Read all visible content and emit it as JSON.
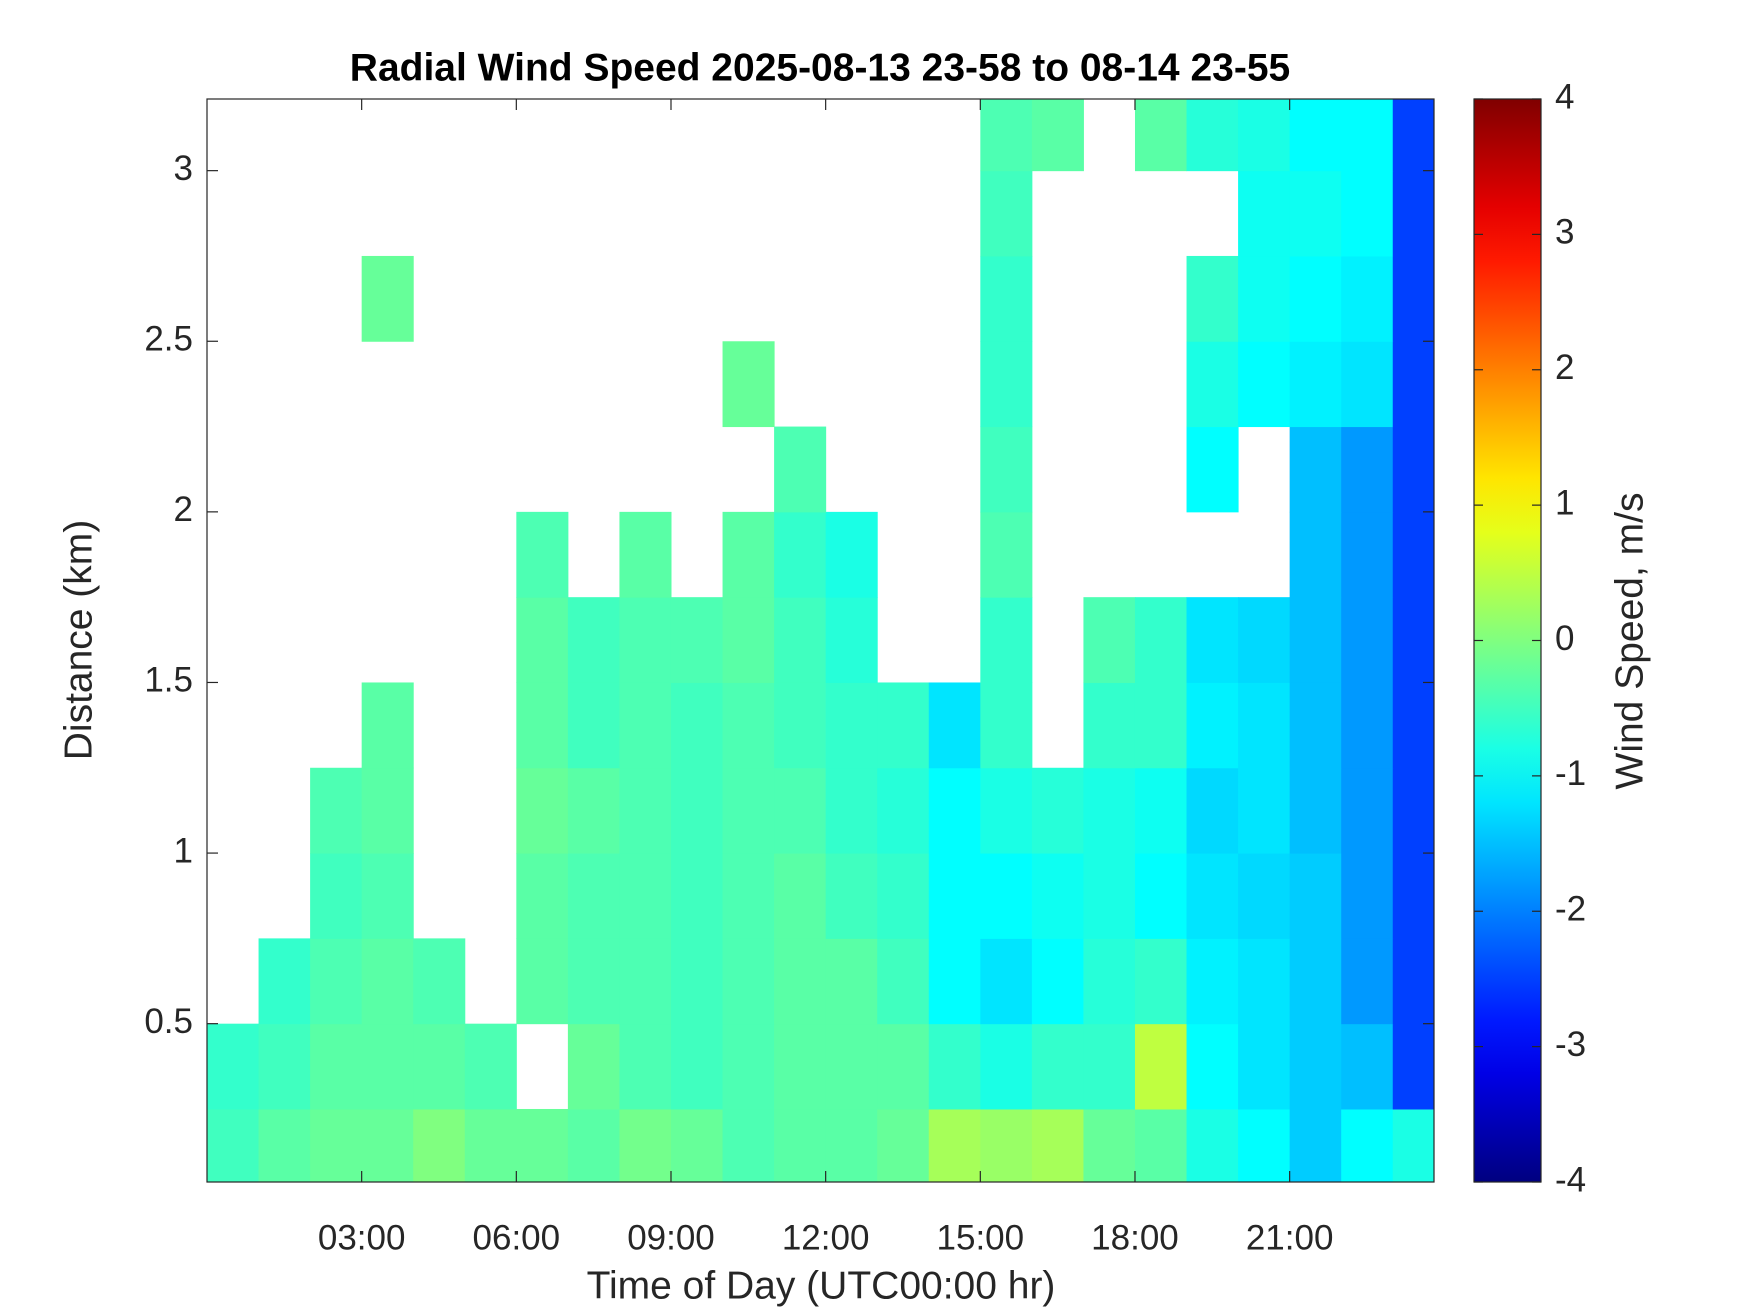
{
  "chart_data": {
    "type": "heatmap",
    "title": "Radial Wind Speed 2025-08-13 23-58 to 08-14 23-55",
    "xlabel": "Time of Day (UTC00:00 hr)",
    "ylabel": "Distance (km)",
    "clabel": "Wind Speed, m/s",
    "xlim": [
      0,
      23.8
    ],
    "ylim": [
      0.036,
      3.21
    ],
    "xticks": [
      {
        "value": 3,
        "label": "03:00"
      },
      {
        "value": 6,
        "label": "06:00"
      },
      {
        "value": 9,
        "label": "09:00"
      },
      {
        "value": 12,
        "label": "12:00"
      },
      {
        "value": 15,
        "label": "15:00"
      },
      {
        "value": 18,
        "label": "18:00"
      },
      {
        "value": 21,
        "label": "21:00"
      }
    ],
    "yticks": [
      0.5,
      1,
      1.5,
      2,
      2.5,
      3
    ],
    "clim": [
      -4,
      4
    ],
    "cticks": [
      -4,
      -3,
      -2,
      -1,
      0,
      1,
      2,
      3,
      4
    ],
    "colormap": "jet",
    "xbins": [
      0,
      1,
      2,
      3,
      4,
      5,
      6,
      7,
      8,
      9,
      10,
      11,
      12,
      13,
      14,
      15,
      16,
      17,
      18,
      19,
      20,
      21,
      22,
      23,
      23.8
    ],
    "ybins": [
      0.036,
      0.25,
      0.5,
      0.75,
      1.0,
      1.25,
      1.5,
      1.75,
      2.0,
      2.25,
      2.5,
      2.75,
      3.0,
      3.21
    ],
    "values": [
      [
        -0.5,
        -0.3,
        -0.2,
        -0.2,
        0,
        -0.2,
        -0.2,
        -0.3,
        -0.1,
        -0.2,
        -0.4,
        -0.3,
        -0.3,
        -0.2,
        0.3,
        0.2,
        0.3,
        -0.2,
        -0.3,
        -0.8,
        -1.0,
        -1.4,
        -1.0,
        -0.8
      ],
      [
        -0.6,
        -0.5,
        -0.3,
        -0.3,
        -0.3,
        -0.4,
        null,
        -0.2,
        -0.4,
        -0.5,
        -0.4,
        -0.3,
        -0.3,
        -0.3,
        -0.6,
        -0.8,
        -0.6,
        -0.6,
        0.5,
        -1.0,
        -1.2,
        -1.4,
        -1.5,
        -2.5
      ],
      [
        null,
        -0.6,
        -0.4,
        -0.3,
        -0.4,
        null,
        -0.3,
        -0.4,
        -0.4,
        -0.5,
        -0.4,
        -0.3,
        -0.3,
        -0.5,
        -1.0,
        -1.2,
        -1.0,
        -0.7,
        -0.6,
        -1.1,
        -1.2,
        -1.4,
        -1.8,
        -2.5
      ],
      [
        null,
        null,
        -0.5,
        -0.4,
        null,
        null,
        -0.3,
        -0.4,
        -0.4,
        -0.5,
        -0.4,
        -0.3,
        -0.5,
        -0.6,
        -1.0,
        -1.0,
        -0.9,
        -0.8,
        -1.0,
        -1.2,
        -1.3,
        -1.4,
        -1.8,
        -2.5
      ],
      [
        null,
        null,
        -0.4,
        -0.3,
        null,
        null,
        -0.2,
        -0.3,
        -0.4,
        -0.5,
        -0.4,
        -0.4,
        -0.6,
        -0.7,
        -1.0,
        -0.8,
        -0.7,
        -0.8,
        -0.9,
        -1.3,
        -1.2,
        -1.5,
        -1.8,
        -2.5
      ],
      [
        null,
        null,
        null,
        -0.3,
        null,
        null,
        -0.3,
        -0.5,
        -0.4,
        -0.5,
        -0.4,
        -0.5,
        -0.6,
        -0.6,
        -1.2,
        -0.6,
        null,
        -0.6,
        -0.6,
        -1.1,
        -1.2,
        -1.5,
        -1.8,
        -2.5
      ],
      [
        null,
        null,
        null,
        null,
        null,
        null,
        -0.3,
        -0.5,
        -0.4,
        -0.4,
        -0.3,
        -0.5,
        -0.7,
        null,
        null,
        -0.6,
        null,
        -0.4,
        -0.6,
        -1.2,
        -1.3,
        -1.5,
        -1.8,
        -2.5
      ],
      [
        null,
        null,
        null,
        null,
        null,
        null,
        -0.4,
        null,
        -0.3,
        null,
        -0.3,
        -0.6,
        -0.8,
        null,
        null,
        -0.4,
        null,
        null,
        null,
        null,
        null,
        -1.5,
        -1.8,
        -2.5
      ],
      [
        null,
        null,
        null,
        null,
        null,
        null,
        null,
        null,
        null,
        null,
        null,
        -0.4,
        null,
        null,
        null,
        -0.5,
        null,
        null,
        null,
        -1.0,
        null,
        -1.5,
        -1.8,
        -2.5
      ],
      [
        null,
        null,
        null,
        null,
        null,
        null,
        null,
        null,
        null,
        null,
        -0.2,
        null,
        null,
        null,
        null,
        -0.6,
        null,
        null,
        null,
        -0.8,
        -1.0,
        -1.1,
        -1.2,
        -2.5
      ],
      [
        null,
        null,
        null,
        -0.2,
        null,
        null,
        null,
        null,
        null,
        null,
        null,
        null,
        null,
        null,
        null,
        -0.6,
        null,
        null,
        null,
        -0.6,
        -0.9,
        -1.0,
        -1.1,
        -2.5
      ],
      [
        null,
        null,
        null,
        null,
        null,
        null,
        null,
        null,
        null,
        null,
        null,
        null,
        null,
        null,
        null,
        -0.5,
        null,
        null,
        null,
        null,
        -0.9,
        -0.9,
        -1.0,
        -2.5
      ],
      [
        null,
        null,
        null,
        null,
        null,
        null,
        null,
        null,
        null,
        null,
        null,
        null,
        null,
        null,
        null,
        -0.4,
        -0.3,
        null,
        -0.3,
        -0.7,
        -0.8,
        -1.0,
        -1.0,
        -2.5
      ]
    ]
  }
}
